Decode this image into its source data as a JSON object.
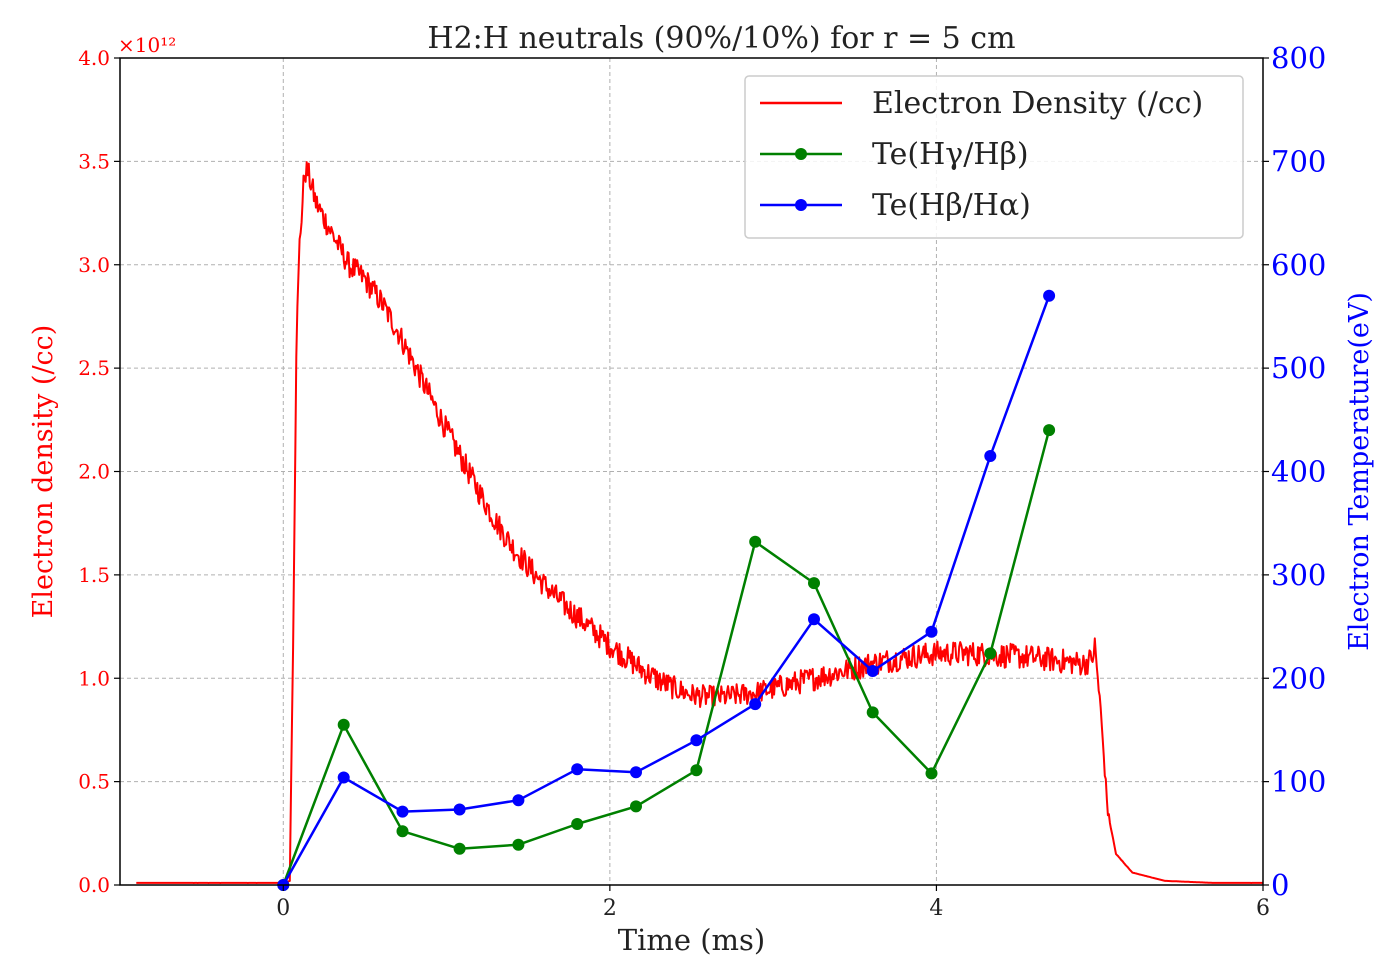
{
  "chart_data": {
    "type": "line",
    "title": "H2:H neutrals (90%/10%) for r = 5 cm",
    "xlabel": "Time (ms)",
    "ylabel_left": "Electron density (/cc)",
    "ylabel_right": "Electron Temperature(eV)",
    "left_multiplier": "×10¹²",
    "xlim": [
      -1.0,
      6.0
    ],
    "ylim_left": [
      0.0,
      4.0
    ],
    "ylim_right": [
      0,
      800
    ],
    "x_ticks": [
      0,
      2,
      4,
      6
    ],
    "x_tick_labels": [
      "0",
      "2",
      "4",
      "6"
    ],
    "y_left_ticks": [
      0.0,
      0.5,
      1.0,
      1.5,
      2.0,
      2.5,
      3.0,
      3.5,
      4.0
    ],
    "y_left_tick_labels": [
      "0.0",
      "0.5",
      "1.0",
      "1.5",
      "2.0",
      "2.5",
      "3.0",
      "3.5",
      "4.0"
    ],
    "y_right_ticks": [
      0,
      100,
      200,
      300,
      400,
      500,
      600,
      700,
      800
    ],
    "y_right_tick_labels": [
      "0",
      "100",
      "200",
      "300",
      "400",
      "500",
      "600",
      "700",
      "800"
    ],
    "grid": true,
    "legend_position": "top-right",
    "colors": {
      "density": "#ff0000",
      "te_gb": "#008000",
      "te_ba": "#0000ff",
      "axis": "#000000",
      "grid": "#b0b0b0"
    },
    "series": [
      {
        "name": "Electron Density (/cc)",
        "axis": "left",
        "style": "line",
        "noise": 0.06,
        "x": [
          -0.9,
          -0.5,
          0.0,
          0.04,
          0.06,
          0.08,
          0.1,
          0.13,
          0.15,
          0.2,
          0.3,
          0.4,
          0.5,
          0.6,
          0.7,
          0.8,
          0.9,
          1.0,
          1.1,
          1.2,
          1.3,
          1.4,
          1.5,
          1.6,
          1.7,
          1.8,
          1.9,
          2.0,
          2.1,
          2.2,
          2.3,
          2.4,
          2.5,
          2.6,
          2.7,
          2.8,
          2.9,
          3.0,
          3.2,
          3.4,
          3.6,
          3.8,
          4.0,
          4.2,
          4.4,
          4.6,
          4.8,
          4.9,
          4.95,
          4.97,
          5.0,
          5.05,
          5.1,
          5.2,
          5.4,
          5.7,
          6.0
        ],
        "y": [
          0.01,
          0.01,
          0.01,
          0.02,
          1.2,
          2.6,
          3.1,
          3.45,
          3.45,
          3.3,
          3.15,
          3.0,
          2.93,
          2.82,
          2.68,
          2.52,
          2.36,
          2.2,
          2.05,
          1.9,
          1.76,
          1.64,
          1.54,
          1.45,
          1.37,
          1.3,
          1.23,
          1.16,
          1.1,
          1.04,
          0.99,
          0.95,
          0.92,
          0.91,
          0.91,
          0.92,
          0.93,
          0.95,
          0.99,
          1.03,
          1.07,
          1.1,
          1.12,
          1.12,
          1.11,
          1.1,
          1.08,
          1.07,
          1.09,
          1.15,
          0.9,
          0.35,
          0.15,
          0.06,
          0.02,
          0.01,
          0.01
        ]
      },
      {
        "name": "Te(Hγ/Hβ)",
        "axis": "right",
        "style": "line-marker",
        "x": [
          0.0,
          0.37,
          0.73,
          1.08,
          1.44,
          1.8,
          2.16,
          2.53,
          2.89,
          3.25,
          3.61,
          3.97,
          4.33,
          4.69
        ],
        "y": [
          0,
          155,
          52,
          35,
          39,
          59,
          76,
          111,
          332,
          292,
          167,
          108,
          224,
          440
        ]
      },
      {
        "name": "Te(Hβ/Hα)",
        "axis": "right",
        "style": "line-marker",
        "x": [
          0.0,
          0.37,
          0.73,
          1.08,
          1.44,
          1.8,
          2.16,
          2.53,
          2.89,
          3.25,
          3.61,
          3.97,
          4.33,
          4.69
        ],
        "y": [
          0,
          104,
          71,
          73,
          82,
          112,
          109,
          140,
          175,
          257,
          207,
          245,
          415,
          570
        ]
      }
    ],
    "legend": [
      {
        "label": "Electron Density (/cc)"
      },
      {
        "label": "Te(Hγ/Hβ)"
      },
      {
        "label": "Te(Hβ/Hα)"
      }
    ]
  }
}
